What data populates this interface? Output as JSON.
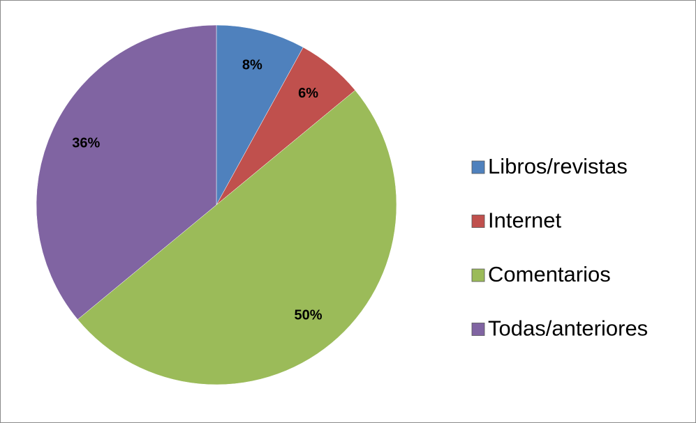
{
  "chart_data": {
    "type": "pie",
    "categories": [
      "Libros/revistas",
      "Internet",
      "Comentarios",
      "Todas/anteriores"
    ],
    "values": [
      8,
      6,
      50,
      36
    ],
    "value_labels": [
      "8%",
      "6%",
      "50%",
      "36%"
    ],
    "colors": [
      "#4f81bd",
      "#c0504d",
      "#9bbb59",
      "#8064a2"
    ],
    "legend": "right"
  }
}
